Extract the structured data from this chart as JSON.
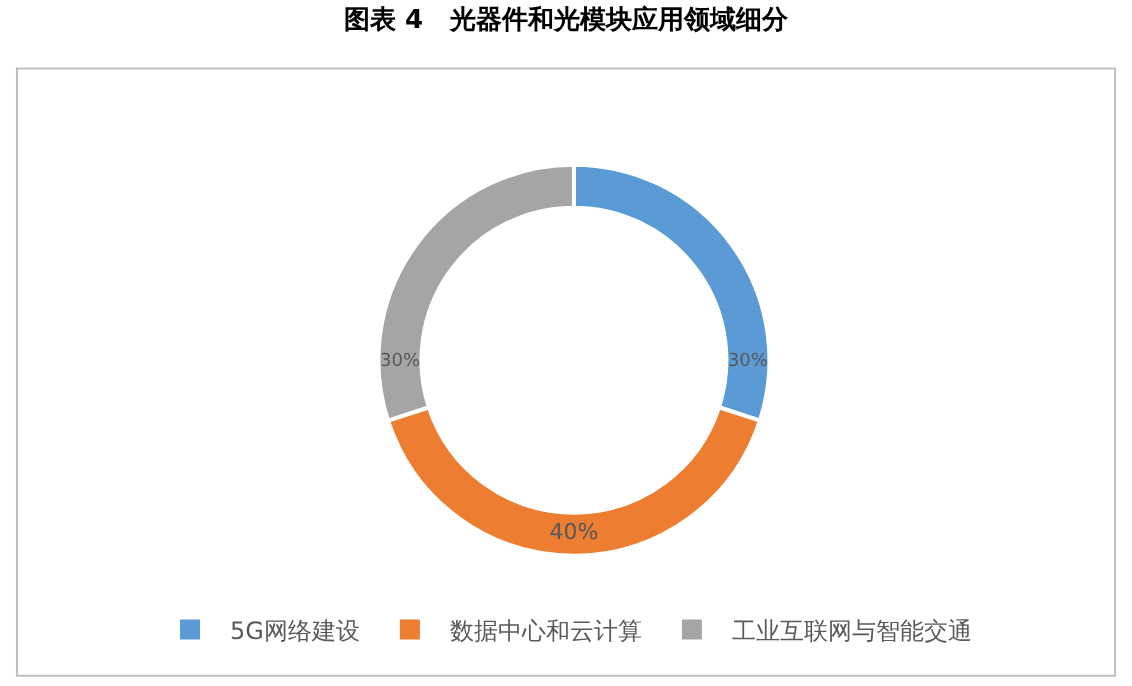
{
  "chart_data": {
    "type": "donut",
    "title": "图表 4   光器件和光模块应用领域细分",
    "categories": [
      "5G网络建设",
      "数据中心和云计算",
      "工业互联网与智能交通"
    ],
    "values": [
      30,
      40,
      30
    ],
    "colors": [
      "#5b9bd5",
      "#ed7d31",
      "#a5a5a5"
    ],
    "value_labels": [
      "30%",
      "40%",
      "30%"
    ],
    "legend": "bottom"
  }
}
